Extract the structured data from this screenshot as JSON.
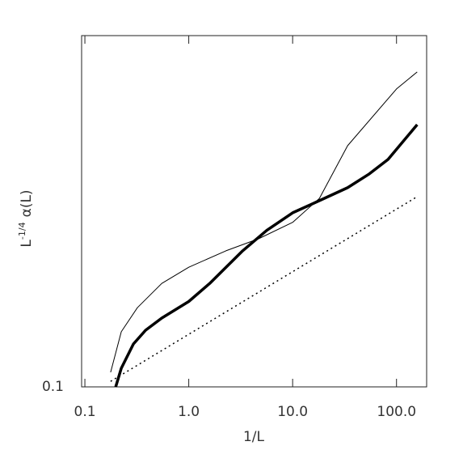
{
  "chart_data": {
    "type": "line",
    "x_label": "1/L",
    "y_label": {
      "base": "L",
      "exponent": "-1/4",
      "rest": "α(L)"
    },
    "xscale": "log",
    "yscale": "log",
    "xlim": [
      0.093,
      195
    ],
    "ylim": [
      0.1,
      1.0
    ],
    "xticks": [
      0.1,
      {
        "value": 1,
        "label": "1.0"
      },
      {
        "value": 10,
        "label": "10.0"
      },
      {
        "value": 100,
        "label": "100.0"
      }
    ],
    "yticks": [
      0.1
    ],
    "series": [
      {
        "color": "#000000",
        "line_width": 1,
        "dash": "solid",
        "x": [
          0.177,
          0.224,
          0.32,
          0.55,
          1.0,
          2.28,
          4.7,
          10,
          18.1,
          33.8,
          100,
          158
        ],
        "values": [
          0.11,
          0.1435,
          0.168,
          0.197,
          0.219,
          0.244,
          0.264,
          0.294,
          0.344,
          0.486,
          0.705,
          0.788
        ]
      },
      {
        "color": "#000000",
        "line_width": 3.5,
        "dash": "solid",
        "x": [
          0.198,
          0.224,
          0.293,
          0.384,
          0.55,
          1.0,
          1.59,
          3.3,
          5.64,
          10,
          18.1,
          33.8,
          54.8,
          82.8,
          158
        ],
        "values": [
          0.1,
          0.113,
          0.1325,
          0.145,
          0.157,
          0.175,
          0.197,
          0.244,
          0.279,
          0.313,
          0.339,
          0.369,
          0.404,
          0.444,
          0.558
        ]
      },
      {
        "color": "#000000",
        "line_width": 1.5,
        "dash": "dotted",
        "x": [
          0.177,
          158
        ],
        "values": [
          0.1037,
          0.348
        ]
      }
    ]
  }
}
